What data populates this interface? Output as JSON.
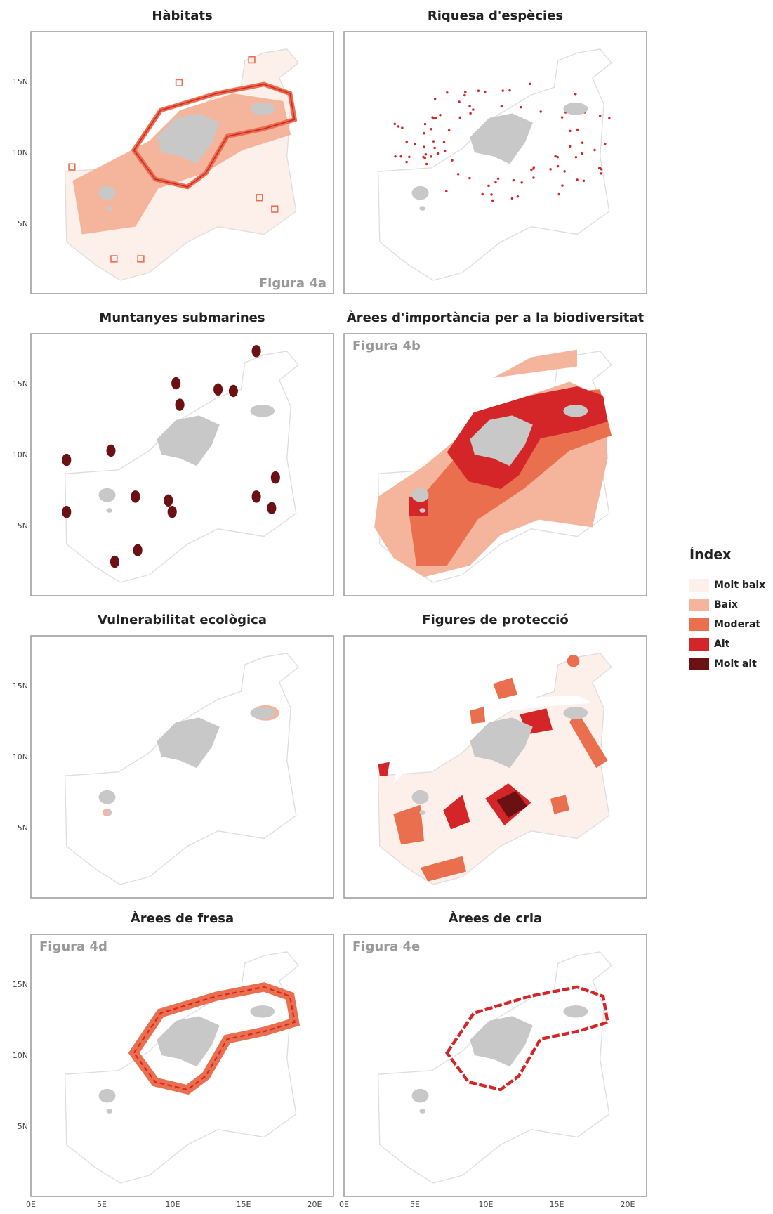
{
  "panels": [
    {
      "title": "Hàbitats",
      "figure_label": "Figura 4a"
    },
    {
      "title": "Riquesa d'espècies"
    },
    {
      "title": "Muntanyes submarines"
    },
    {
      "title": "Àrees d'importància per a la biodiversitat",
      "figure_label": "Figura 4b"
    },
    {
      "title": "Vulnerabilitat ecològica"
    },
    {
      "title": "Figures de protecció"
    },
    {
      "title": "Àrees de fresa",
      "figure_label": "Figura 4d"
    },
    {
      "title": "Àrees de cria",
      "figure_label": "Figura 4e"
    }
  ],
  "y_axis_labels": [
    "15N",
    "10N",
    "5N"
  ],
  "x_axis_labels": [
    "0E",
    "5E",
    "10E",
    "15E",
    "20E"
  ],
  "legend": {
    "title": "Índex",
    "items": [
      {
        "label": "Molt baix",
        "color": "#fdf0ea"
      },
      {
        "label": "Baix",
        "color": "#f5b59c"
      },
      {
        "label": "Moderat",
        "color": "#ea6f4f"
      },
      {
        "label": "Alt",
        "color": "#d42628"
      },
      {
        "label": "Molt alt",
        "color": "#6b1013"
      }
    ]
  }
}
